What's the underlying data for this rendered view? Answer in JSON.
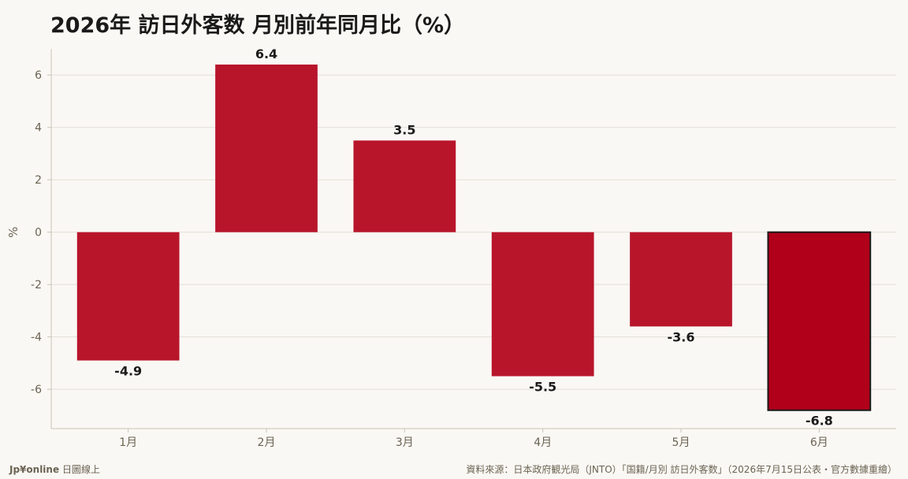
{
  "title": "2026年 訪日外客数 月別前年同月比（%）",
  "brand": {
    "name": "Jp¥online",
    "sub": "日圖線上"
  },
  "source": "資料來源：日本政府観光局（JNTO）「国籍/月別 訪日外客数」（2026年7月15日公表・官方數據重繪）",
  "colors": {
    "bar": "#b8152b",
    "highlight": "#b0001a",
    "highlight_border": "#1a1a1a",
    "grid": "#e2ded6",
    "background": "#faf8f4"
  },
  "chart_data": {
    "type": "bar",
    "title": "2026年 訪日外客数 月別前年同月比（%）",
    "xlabel": "",
    "ylabel": "%",
    "categories": [
      "1月",
      "2月",
      "3月",
      "4月",
      "5月",
      "6月"
    ],
    "values": [
      -4.9,
      6.4,
      3.5,
      -5.5,
      -3.6,
      -6.8
    ],
    "data_labels": [
      "-4.9",
      "6.4",
      "3.5",
      "-5.5",
      "-3.6",
      "-6.8"
    ],
    "highlight_index": 5,
    "ylim": [
      -7.5,
      7.0
    ],
    "yticks": [
      6,
      4,
      2,
      0,
      -2,
      -4,
      -6
    ],
    "ytick_labels": [
      "6",
      "4",
      "2",
      "0",
      "-2",
      "-4",
      "-6"
    ],
    "grid": true
  }
}
